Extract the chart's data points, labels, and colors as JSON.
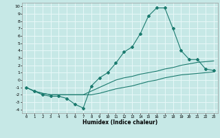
{
  "xlabel": "Humidex (Indice chaleur)",
  "xlim": [
    -0.5,
    23.5
  ],
  "ylim": [
    -4.5,
    10.5
  ],
  "xticks": [
    0,
    1,
    2,
    3,
    4,
    5,
    6,
    7,
    8,
    9,
    10,
    11,
    12,
    13,
    14,
    15,
    16,
    17,
    18,
    19,
    20,
    21,
    22,
    23
  ],
  "yticks": [
    -4,
    -3,
    -2,
    -1,
    0,
    1,
    2,
    3,
    4,
    5,
    6,
    7,
    8,
    9,
    10
  ],
  "bg_color": "#c6e8e6",
  "line_color": "#1a7a6e",
  "grid_color": "#e8f8f8",
  "line1_x": [
    0,
    1,
    2,
    3,
    4,
    5,
    6,
    7,
    8,
    9,
    10,
    11,
    12,
    13,
    14,
    15,
    16,
    17,
    18,
    19,
    20,
    21,
    22,
    23
  ],
  "line1_y": [
    -1.0,
    -1.5,
    -2.0,
    -2.2,
    -2.2,
    -2.5,
    -3.3,
    -3.8,
    -0.8,
    0.3,
    1.0,
    2.3,
    3.8,
    4.5,
    6.3,
    8.7,
    9.8,
    9.8,
    7.0,
    4.0,
    2.8,
    2.8,
    1.5,
    1.3
  ],
  "line2_x": [
    0,
    1,
    2,
    3,
    4,
    5,
    6,
    7,
    8,
    9,
    10,
    11,
    12,
    13,
    14,
    15,
    16,
    17,
    18,
    19,
    20,
    21,
    22,
    23
  ],
  "line2_y": [
    -1.0,
    -1.5,
    -1.8,
    -2.0,
    -2.0,
    -2.0,
    -2.0,
    -2.0,
    -1.5,
    -1.0,
    -0.5,
    0.0,
    0.3,
    0.5,
    0.8,
    1.0,
    1.2,
    1.5,
    1.7,
    2.0,
    2.2,
    2.4,
    2.5,
    2.6
  ],
  "line3_x": [
    0,
    1,
    2,
    3,
    4,
    5,
    6,
    7,
    8,
    9,
    10,
    11,
    12,
    13,
    14,
    15,
    16,
    17,
    18,
    19,
    20,
    21,
    22,
    23
  ],
  "line3_y": [
    -1.0,
    -1.5,
    -1.8,
    -2.0,
    -2.0,
    -2.0,
    -2.0,
    -2.0,
    -2.0,
    -1.8,
    -1.5,
    -1.2,
    -1.0,
    -0.8,
    -0.5,
    -0.2,
    0.0,
    0.3,
    0.5,
    0.7,
    0.8,
    0.9,
    1.0,
    1.1
  ]
}
